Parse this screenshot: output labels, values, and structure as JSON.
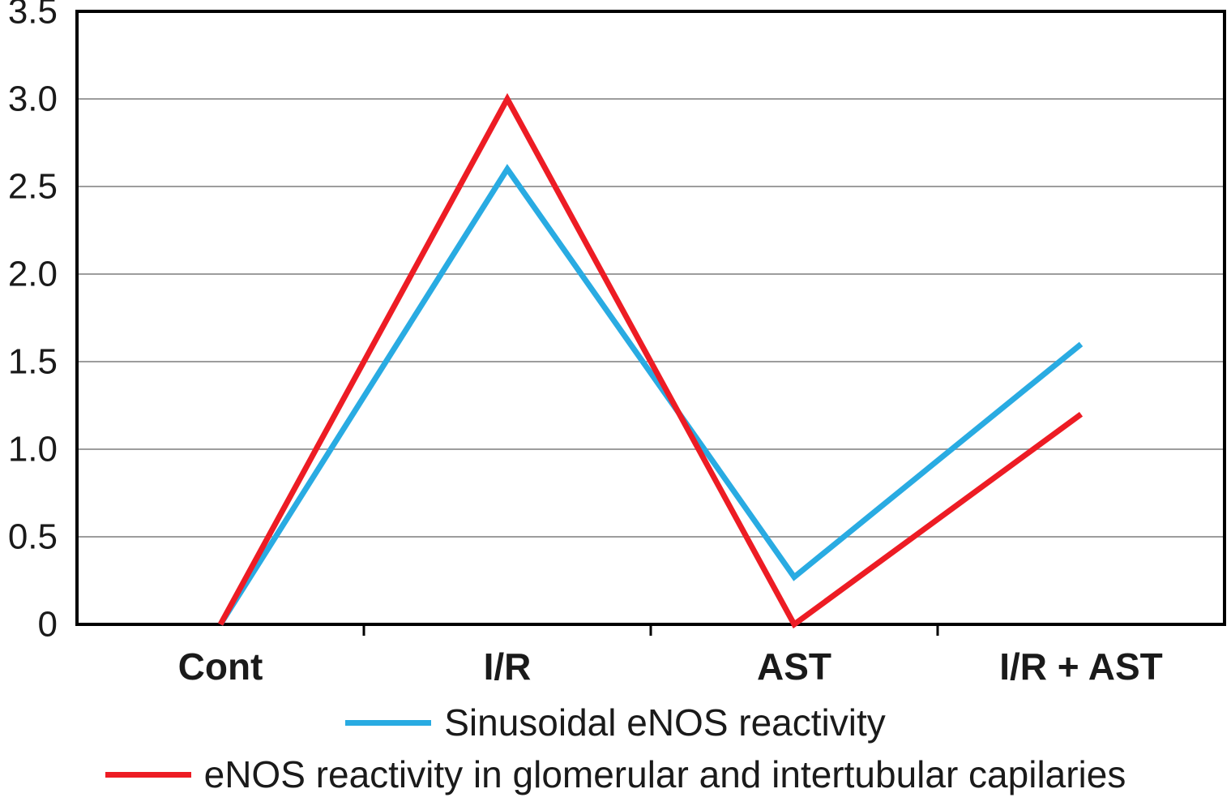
{
  "chart_data": {
    "type": "line",
    "categories": [
      "Cont",
      "I/R",
      "AST",
      "I/R + AST"
    ],
    "series": [
      {
        "name": "Sinusoidal eNOS reactivity",
        "color": "#29ABE2",
        "values": [
          0,
          2.6,
          0.27,
          1.6
        ]
      },
      {
        "name": "eNOS reactivity in glomerular and intertubular capilaries",
        "color": "#ED1C24",
        "values": [
          0,
          3.0,
          0,
          1.2
        ]
      }
    ],
    "ylim": [
      0,
      3.5
    ],
    "yticks": [
      {
        "value": 0,
        "label": "0"
      },
      {
        "value": 0.5,
        "label": "0.5"
      },
      {
        "value": 1,
        "label": "1.0"
      },
      {
        "value": 1.5,
        "label": "1.5"
      },
      {
        "value": 2,
        "label": "2.0"
      },
      {
        "value": 2.5,
        "label": "2.5"
      },
      {
        "value": 3,
        "label": "3.0"
      },
      {
        "value": 3.5,
        "label": "3.5"
      }
    ],
    "grid": true,
    "legend_position": "bottom",
    "colors": {
      "grid": "#9d9d9d",
      "axis": "#000000",
      "text": "#1a1a1a",
      "background": "#ffffff"
    }
  }
}
